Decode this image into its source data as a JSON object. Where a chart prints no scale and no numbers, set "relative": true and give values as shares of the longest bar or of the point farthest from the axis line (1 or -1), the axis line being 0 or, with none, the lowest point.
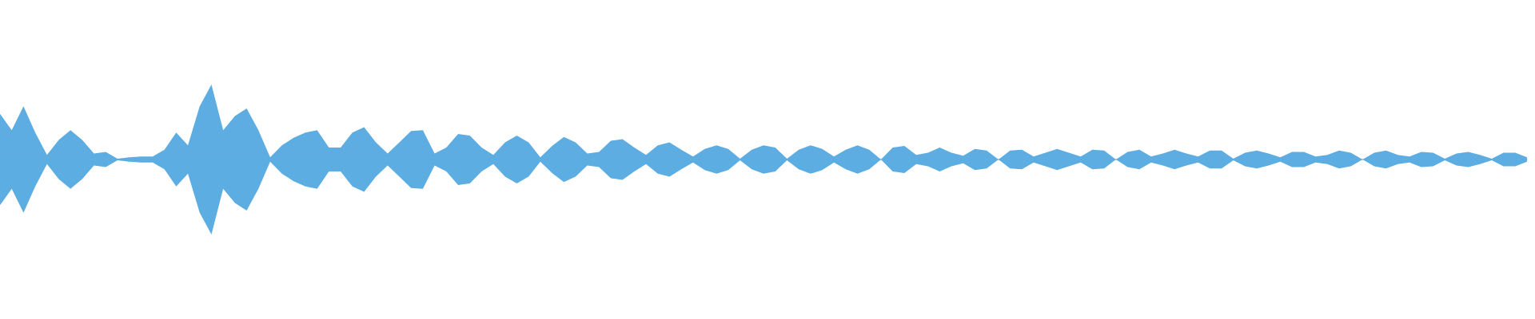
{
  "chart_data": {
    "type": "area",
    "relative": true,
    "categories": [
      null,
      null,
      null,
      null,
      null,
      null,
      null,
      null,
      null,
      null,
      null,
      null,
      null,
      null,
      null,
      null,
      null,
      null,
      null,
      null,
      null,
      null,
      null,
      null,
      null,
      null,
      null,
      null,
      null,
      null,
      null,
      null,
      null,
      null,
      null,
      null,
      null,
      null,
      null,
      null,
      null,
      null,
      null,
      null,
      null,
      null,
      null,
      null,
      null,
      null,
      null,
      null,
      null,
      null,
      null,
      null,
      null,
      null,
      null,
      null,
      null,
      null,
      null,
      null,
      null,
      null,
      null,
      null,
      null,
      null,
      null,
      null,
      null,
      null,
      null,
      null,
      null,
      null,
      null,
      null,
      null,
      null,
      null,
      null,
      null,
      null,
      null,
      null,
      null,
      null,
      null,
      null,
      null,
      null,
      null,
      null,
      null,
      null,
      null,
      null,
      null,
      null,
      null,
      null,
      null,
      null,
      null,
      null,
      null,
      null,
      null,
      null,
      null,
      null,
      null,
      null,
      null,
      null,
      null,
      null,
      null,
      null,
      null,
      null,
      null,
      null,
      null,
      null,
      null,
      null,
      null
    ],
    "series": [
      {
        "color": "#5dade2",
        "values": [
          0.61,
          0.39,
          0.71,
          0.36,
          0.06,
          0.26,
          0.39,
          0.26,
          0.08,
          0.1,
          0.01,
          0.03,
          0.04,
          0.04,
          0.13,
          0.36,
          0.19,
          0.71,
          1,
          0.39,
          0.58,
          0.68,
          0.39,
          0.03,
          0.19,
          0.29,
          0.36,
          0.39,
          0.16,
          0.16,
          0.36,
          0.43,
          0.23,
          0.08,
          0.23,
          0.38,
          0.39,
          0.08,
          0.16,
          0.34,
          0.32,
          0.16,
          0.06,
          0.23,
          0.32,
          0.23,
          0.03,
          0.18,
          0.3,
          0.23,
          0.08,
          0.1,
          0.25,
          0.27,
          0.16,
          0.06,
          0.19,
          0.23,
          0.13,
          0.04,
          0.14,
          0.19,
          0.14,
          0.01,
          0.13,
          0.19,
          0.16,
          0.01,
          0.13,
          0.19,
          0.14,
          0.04,
          0.13,
          0.19,
          0.13,
          0,
          0.16,
          0.18,
          0.06,
          0.09,
          0.16,
          0.09,
          0.05,
          0.14,
          0.12,
          0,
          0.12,
          0.13,
          0.04,
          0.09,
          0.14,
          0.09,
          0.04,
          0.13,
          0.12,
          0,
          0.1,
          0.13,
          0.04,
          0.08,
          0.13,
          0.08,
          0.04,
          0.12,
          0.12,
          0.01,
          0.09,
          0.12,
          0.08,
          0.03,
          0.1,
          0.1,
          0.04,
          0.06,
          0.12,
          0.09,
          0,
          0.09,
          0.12,
          0.06,
          0.04,
          0.1,
          0.09,
          0.01,
          0.08,
          0.1,
          0.06,
          0.01,
          0.09,
          0.09,
          0.03
        ]
      },
      {
        "color": "#5caee2",
        "values": [
          -0.61,
          -0.39,
          -0.71,
          -0.36,
          -0.06,
          -0.26,
          -0.39,
          -0.26,
          -0.08,
          -0.1,
          -0.01,
          -0.03,
          -0.04,
          -0.04,
          -0.13,
          -0.36,
          -0.19,
          -0.71,
          -1,
          -0.39,
          -0.58,
          -0.68,
          -0.39,
          -0.03,
          -0.19,
          -0.29,
          -0.36,
          -0.39,
          -0.16,
          -0.16,
          -0.36,
          -0.43,
          -0.23,
          -0.08,
          -0.23,
          -0.38,
          -0.39,
          -0.08,
          -0.16,
          -0.34,
          -0.32,
          -0.16,
          -0.06,
          -0.23,
          -0.32,
          -0.23,
          -0.03,
          -0.18,
          -0.3,
          -0.23,
          -0.08,
          -0.1,
          -0.25,
          -0.27,
          -0.16,
          -0.06,
          -0.19,
          -0.23,
          -0.13,
          -0.04,
          -0.14,
          -0.19,
          -0.14,
          -0.01,
          -0.13,
          -0.19,
          -0.16,
          -0.01,
          -0.13,
          -0.19,
          -0.14,
          -0.04,
          -0.13,
          -0.19,
          -0.13,
          0,
          -0.16,
          -0.18,
          -0.06,
          -0.09,
          -0.16,
          -0.09,
          -0.05,
          -0.14,
          -0.12,
          0,
          -0.12,
          -0.13,
          -0.04,
          -0.09,
          -0.14,
          -0.09,
          -0.04,
          -0.13,
          -0.12,
          0,
          -0.1,
          -0.13,
          -0.04,
          -0.08,
          -0.13,
          -0.08,
          -0.04,
          -0.12,
          -0.12,
          -0.01,
          -0.09,
          -0.12,
          -0.08,
          -0.03,
          -0.1,
          -0.1,
          -0.04,
          -0.06,
          -0.12,
          -0.09,
          0,
          -0.09,
          -0.12,
          -0.06,
          -0.04,
          -0.1,
          -0.09,
          -0.01,
          -0.08,
          -0.1,
          -0.06,
          -0.01,
          -0.09,
          -0.09,
          -0.03
        ]
      }
    ]
  }
}
